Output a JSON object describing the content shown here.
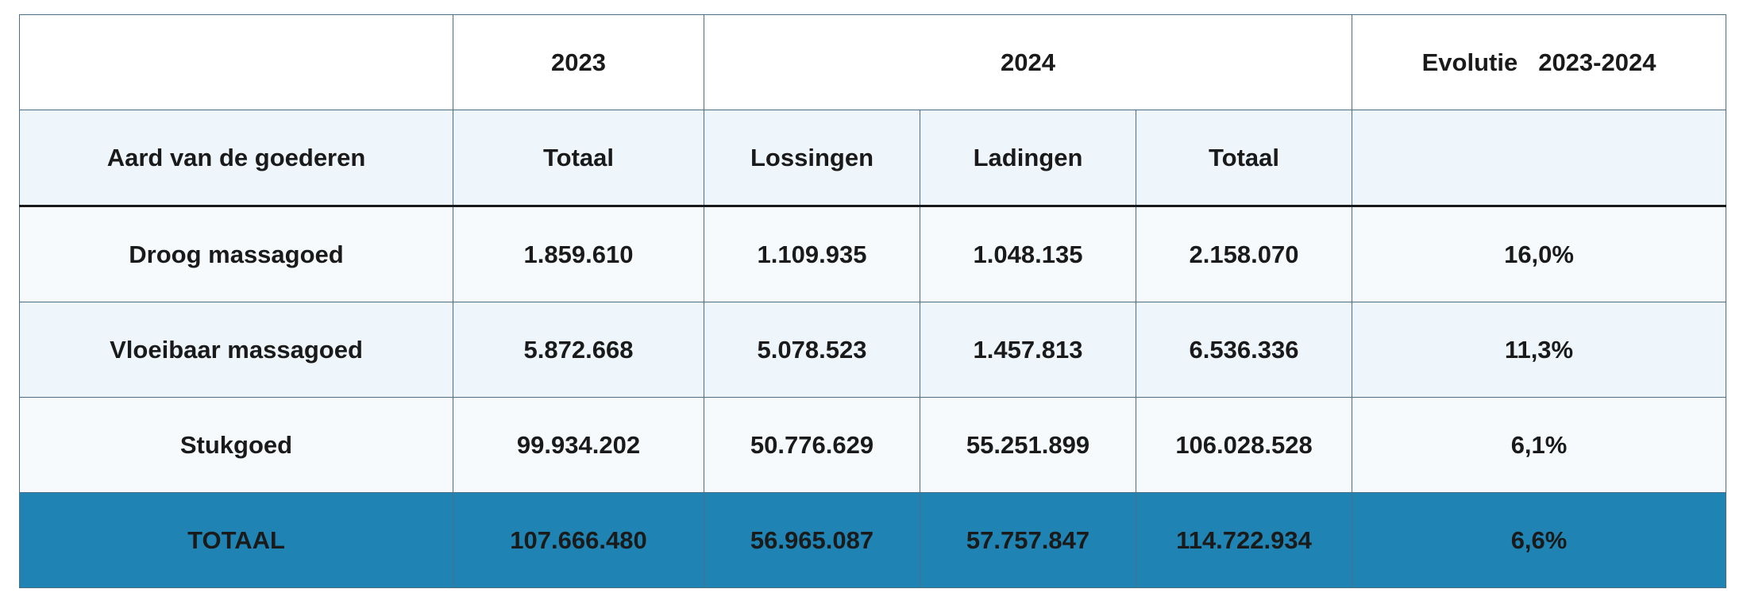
{
  "table": {
    "header_top": {
      "year_2023": "2023",
      "year_2024": "2024",
      "evolutie_label": "Evolutie",
      "evolutie_range": "2023-2024"
    },
    "header_sub": {
      "aard": "Aard van de goederen",
      "totaal_2023": "Totaal",
      "lossingen": "Lossingen",
      "ladingen": "Ladingen",
      "totaal_2024": "Totaal"
    },
    "rows": [
      {
        "label": "Droog massagoed",
        "totaal_2023": "1.859.610",
        "lossingen": "1.109.935",
        "ladingen": "1.048.135",
        "totaal_2024": "2.158.070",
        "evolutie": "16,0%"
      },
      {
        "label": "Vloeibaar massagoed",
        "totaal_2023": "5.872.668",
        "lossingen": "5.078.523",
        "ladingen": "1.457.813",
        "totaal_2024": "6.536.336",
        "evolutie": "11,3%"
      },
      {
        "label": "Stukgoed",
        "totaal_2023": "99.934.202",
        "lossingen": "50.776.629",
        "ladingen": "55.251.899",
        "totaal_2024": "106.028.528",
        "evolutie": "6,1%"
      }
    ],
    "total": {
      "label": "TOTAAL",
      "totaal_2023": "107.666.480",
      "lossingen": "56.965.087",
      "ladingen": "57.757.847",
      "totaal_2024": "114.722.934",
      "evolutie": "6,6%"
    }
  },
  "colors": {
    "header_accent": "#1c6fa6",
    "total_row_bg": "#1f84b3",
    "light_row_bg": "#eef6fc"
  }
}
